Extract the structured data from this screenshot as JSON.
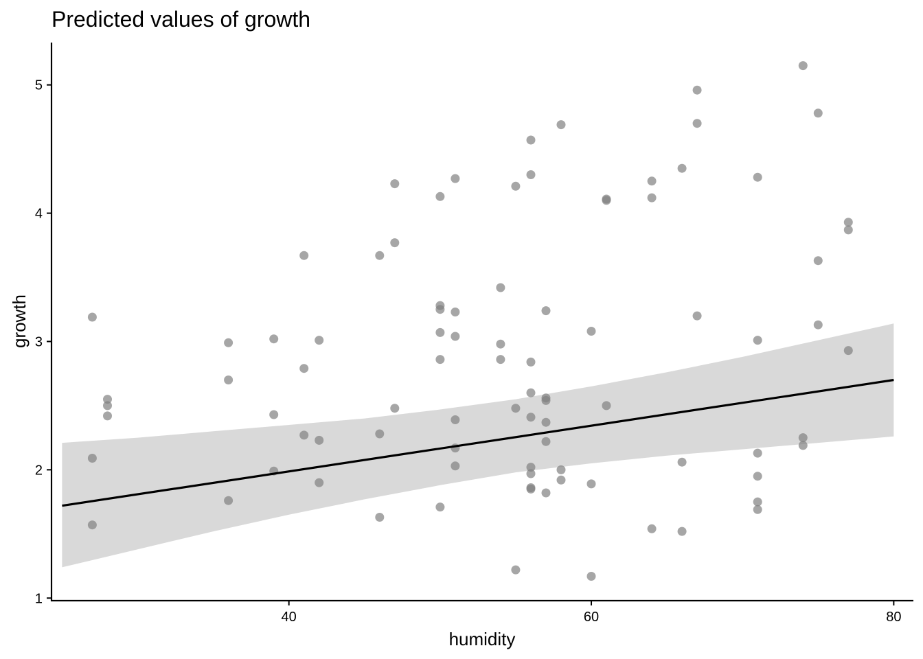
{
  "chart_data": {
    "type": "scatter",
    "title": "Predicted values of growth",
    "xlabel": "humidity",
    "ylabel": "growth",
    "xlim": [
      24.3,
      81.3
    ],
    "ylim": [
      0.98,
      5.33
    ],
    "x_ticks": [
      40,
      60,
      80
    ],
    "y_ticks": [
      1,
      2,
      3,
      4,
      5
    ],
    "colors": {
      "points": "#808080",
      "band": "#d9d9d9",
      "line": "#000000",
      "axis": "#000000"
    },
    "points": [
      {
        "x": 27,
        "y": 3.19
      },
      {
        "x": 27,
        "y": 2.09
      },
      {
        "x": 27,
        "y": 1.57
      },
      {
        "x": 28,
        "y": 2.55
      },
      {
        "x": 28,
        "y": 2.5
      },
      {
        "x": 28,
        "y": 2.42
      },
      {
        "x": 36,
        "y": 2.99
      },
      {
        "x": 36,
        "y": 2.7
      },
      {
        "x": 36,
        "y": 1.76
      },
      {
        "x": 39,
        "y": 3.02
      },
      {
        "x": 39,
        "y": 2.43
      },
      {
        "x": 39,
        "y": 1.99
      },
      {
        "x": 41,
        "y": 3.67
      },
      {
        "x": 41,
        "y": 2.79
      },
      {
        "x": 41,
        "y": 2.27
      },
      {
        "x": 42,
        "y": 3.01
      },
      {
        "x": 42,
        "y": 2.23
      },
      {
        "x": 42,
        "y": 1.9
      },
      {
        "x": 46,
        "y": 3.67
      },
      {
        "x": 46,
        "y": 2.28
      },
      {
        "x": 46,
        "y": 1.63
      },
      {
        "x": 47,
        "y": 4.23
      },
      {
        "x": 47,
        "y": 3.77
      },
      {
        "x": 47,
        "y": 2.48
      },
      {
        "x": 50,
        "y": 4.13
      },
      {
        "x": 50,
        "y": 3.28
      },
      {
        "x": 50,
        "y": 3.25
      },
      {
        "x": 50,
        "y": 3.07
      },
      {
        "x": 50,
        "y": 2.86
      },
      {
        "x": 50,
        "y": 1.71
      },
      {
        "x": 51,
        "y": 4.27
      },
      {
        "x": 51,
        "y": 3.23
      },
      {
        "x": 51,
        "y": 3.04
      },
      {
        "x": 51,
        "y": 2.39
      },
      {
        "x": 51,
        "y": 2.17
      },
      {
        "x": 51,
        "y": 2.03
      },
      {
        "x": 54,
        "y": 3.42
      },
      {
        "x": 54,
        "y": 2.98
      },
      {
        "x": 54,
        "y": 2.86
      },
      {
        "x": 55,
        "y": 4.21
      },
      {
        "x": 55,
        "y": 2.48
      },
      {
        "x": 55,
        "y": 1.22
      },
      {
        "x": 56,
        "y": 4.57
      },
      {
        "x": 56,
        "y": 4.3
      },
      {
        "x": 56,
        "y": 2.84
      },
      {
        "x": 56,
        "y": 2.6
      },
      {
        "x": 56,
        "y": 2.41
      },
      {
        "x": 56,
        "y": 2.02
      },
      {
        "x": 56,
        "y": 1.97
      },
      {
        "x": 56,
        "y": 1.86
      },
      {
        "x": 56,
        "y": 1.85
      },
      {
        "x": 57,
        "y": 3.24
      },
      {
        "x": 57,
        "y": 2.56
      },
      {
        "x": 57,
        "y": 2.54
      },
      {
        "x": 57,
        "y": 2.37
      },
      {
        "x": 57,
        "y": 2.22
      },
      {
        "x": 57,
        "y": 1.82
      },
      {
        "x": 58,
        "y": 4.69
      },
      {
        "x": 58,
        "y": 2.0
      },
      {
        "x": 58,
        "y": 1.92
      },
      {
        "x": 60,
        "y": 3.08
      },
      {
        "x": 60,
        "y": 1.89
      },
      {
        "x": 60,
        "y": 1.17
      },
      {
        "x": 61,
        "y": 4.11
      },
      {
        "x": 61,
        "y": 4.1
      },
      {
        "x": 61,
        "y": 2.5
      },
      {
        "x": 64,
        "y": 4.25
      },
      {
        "x": 64,
        "y": 4.12
      },
      {
        "x": 64,
        "y": 1.54
      },
      {
        "x": 66,
        "y": 4.35
      },
      {
        "x": 66,
        "y": 2.06
      },
      {
        "x": 66,
        "y": 1.52
      },
      {
        "x": 67,
        "y": 4.96
      },
      {
        "x": 67,
        "y": 4.7
      },
      {
        "x": 67,
        "y": 3.2
      },
      {
        "x": 71,
        "y": 4.28
      },
      {
        "x": 71,
        "y": 3.01
      },
      {
        "x": 71,
        "y": 2.13
      },
      {
        "x": 71,
        "y": 1.95
      },
      {
        "x": 71,
        "y": 1.75
      },
      {
        "x": 71,
        "y": 1.69
      },
      {
        "x": 74,
        "y": 5.15
      },
      {
        "x": 74,
        "y": 2.25
      },
      {
        "x": 74,
        "y": 2.19
      },
      {
        "x": 75,
        "y": 4.78
      },
      {
        "x": 75,
        "y": 3.63
      },
      {
        "x": 75,
        "y": 3.13
      },
      {
        "x": 77,
        "y": 3.93
      },
      {
        "x": 77,
        "y": 3.87
      },
      {
        "x": 77,
        "y": 2.93
      }
    ],
    "fit_line": {
      "x": [
        25,
        80
      ],
      "y": [
        1.72,
        2.7
      ]
    },
    "confidence_band": {
      "x": [
        25,
        30,
        35,
        40,
        45,
        50,
        55,
        60,
        65,
        70,
        75,
        80
      ],
      "lower": [
        1.24,
        1.38,
        1.52,
        1.65,
        1.77,
        1.88,
        1.98,
        2.05,
        2.11,
        2.16,
        2.21,
        2.26
      ],
      "upper": [
        2.21,
        2.25,
        2.3,
        2.35,
        2.4,
        2.47,
        2.55,
        2.65,
        2.76,
        2.88,
        3.01,
        3.14
      ]
    }
  }
}
